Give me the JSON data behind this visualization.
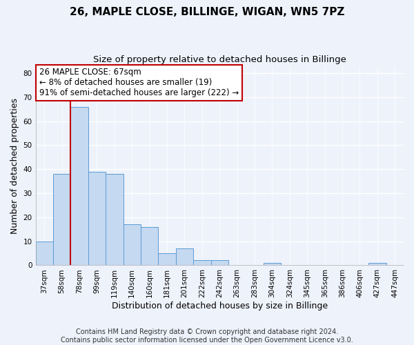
{
  "title": "26, MAPLE CLOSE, BILLINGE, WIGAN, WN5 7PZ",
  "subtitle": "Size of property relative to detached houses in Billinge",
  "xlabel": "Distribution of detached houses by size in Billinge",
  "ylabel": "Number of detached properties",
  "bar_labels": [
    "37sqm",
    "58sqm",
    "78sqm",
    "99sqm",
    "119sqm",
    "140sqm",
    "160sqm",
    "181sqm",
    "201sqm",
    "222sqm",
    "242sqm",
    "263sqm",
    "283sqm",
    "304sqm",
    "324sqm",
    "345sqm",
    "365sqm",
    "386sqm",
    "406sqm",
    "427sqm",
    "447sqm"
  ],
  "bar_values": [
    10,
    38,
    66,
    39,
    38,
    17,
    16,
    5,
    7,
    2,
    2,
    0,
    0,
    1,
    0,
    0,
    0,
    0,
    0,
    1,
    0
  ],
  "bar_color": "#c5d9f1",
  "bar_edge_color": "#5b9bd5",
  "vline_x": 1.5,
  "vline_color": "#c00000",
  "ylim": [
    0,
    83
  ],
  "yticks": [
    0,
    10,
    20,
    30,
    40,
    50,
    60,
    70,
    80
  ],
  "annotation_title": "26 MAPLE CLOSE: 67sqm",
  "annotation_line1": "← 8% of detached houses are smaller (19)",
  "annotation_line2": "91% of semi-detached houses are larger (222) →",
  "annotation_box_color": "#ffffff",
  "annotation_box_edge": "#c00000",
  "footer_line1": "Contains HM Land Registry data © Crown copyright and database right 2024.",
  "footer_line2": "Contains public sector information licensed under the Open Government Licence v3.0.",
  "bg_color": "#eef2fb",
  "grid_color": "#ffffff",
  "title_fontsize": 11,
  "subtitle_fontsize": 9.5,
  "axis_label_fontsize": 9,
  "tick_fontsize": 7.5,
  "footer_fontsize": 7,
  "ann_fontsize": 8.5
}
